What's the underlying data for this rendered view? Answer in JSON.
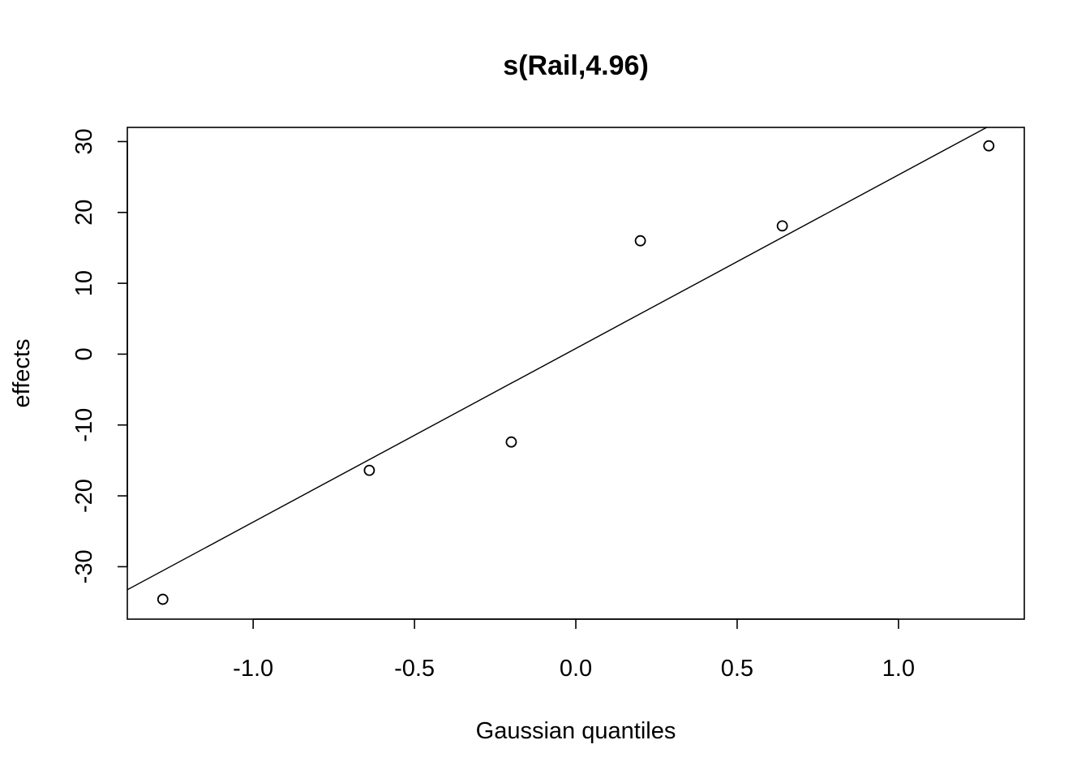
{
  "chart_data": {
    "type": "scatter",
    "title": "s(Rail,4.96)",
    "xlabel": "Gaussian quantiles",
    "ylabel": "effects",
    "xlim": [
      -1.39,
      1.39
    ],
    "ylim": [
      -37.4,
      32.0
    ],
    "xticks": [
      -1.0,
      -0.5,
      0.0,
      0.5,
      1.0
    ],
    "xtick_labels": [
      "-1.0",
      "-0.5",
      "0.0",
      "0.5",
      "1.0"
    ],
    "yticks": [
      -30,
      -20,
      -10,
      0,
      10,
      20,
      30
    ],
    "ytick_labels": [
      "-30",
      "-20",
      "-10",
      "0",
      "10",
      "20",
      "30"
    ],
    "points": [
      {
        "x": -1.28,
        "y": -34.6
      },
      {
        "x": -0.64,
        "y": -16.4
      },
      {
        "x": -0.2,
        "y": -12.4
      },
      {
        "x": 0.2,
        "y": 16.0
      },
      {
        "x": 0.64,
        "y": 18.1
      },
      {
        "x": 1.28,
        "y": 29.4
      }
    ],
    "reference_line": {
      "intercept": 0.8,
      "slope": 24.5
    },
    "grid": false,
    "legend": "none"
  }
}
